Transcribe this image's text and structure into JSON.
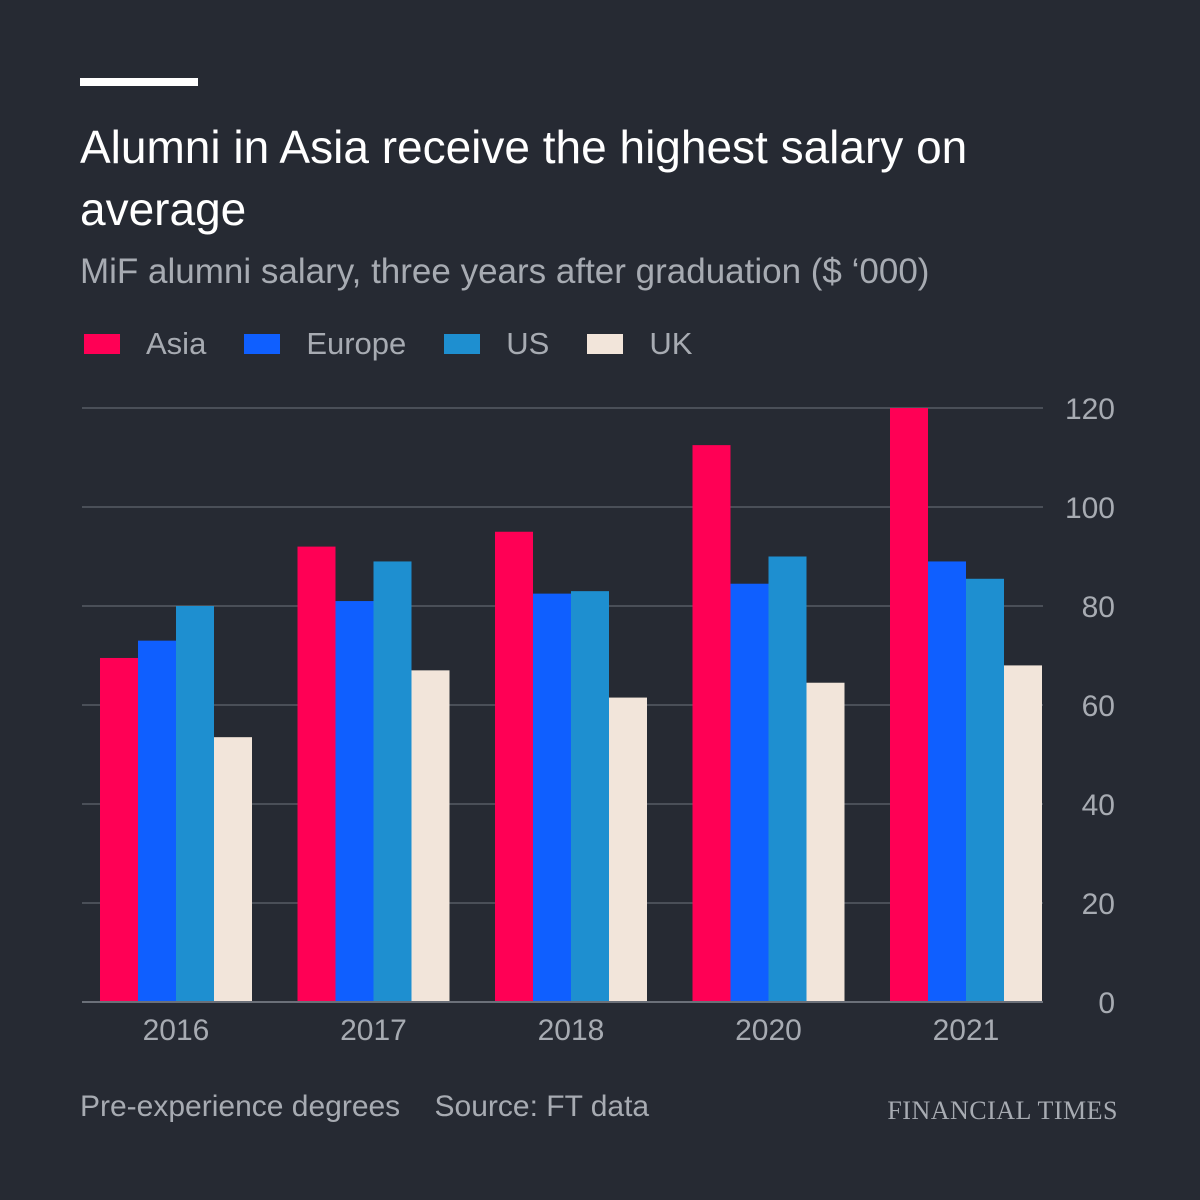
{
  "title": "Alumni in Asia receive the highest salary on average",
  "subtitle": "MiF alumni salary, three years after graduation ($ ‘000)",
  "footer": {
    "note": "Pre-experience degrees",
    "source": "Source: FT data",
    "brand": "FINANCIAL TIMES"
  },
  "colors": {
    "background": "#262a33",
    "Asia": "#ff0055",
    "Europe": "#0f5fff",
    "US": "#1e8fd0",
    "UK": "#f2e5da",
    "gridline": "#4a4f58",
    "axis_text": "#a7abb2"
  },
  "chart_data": {
    "type": "bar",
    "categories": [
      "2016",
      "2017",
      "2018",
      "2020",
      "2021"
    ],
    "series": [
      {
        "name": "Asia",
        "values": [
          69.5,
          92,
          95,
          112.5,
          120
        ]
      },
      {
        "name": "Europe",
        "values": [
          73,
          81,
          82.5,
          84.5,
          89
        ]
      },
      {
        "name": "US",
        "values": [
          80,
          89,
          83,
          90,
          85.5
        ]
      },
      {
        "name": "UK",
        "values": [
          53.5,
          67,
          61.5,
          64.5,
          68
        ]
      }
    ],
    "yticks": [
      "0",
      "20",
      "40",
      "60",
      "80",
      "100",
      "120"
    ],
    "ylim": [
      0,
      120
    ],
    "grid": true,
    "y_axis_side": "right",
    "legend": "top-left"
  }
}
